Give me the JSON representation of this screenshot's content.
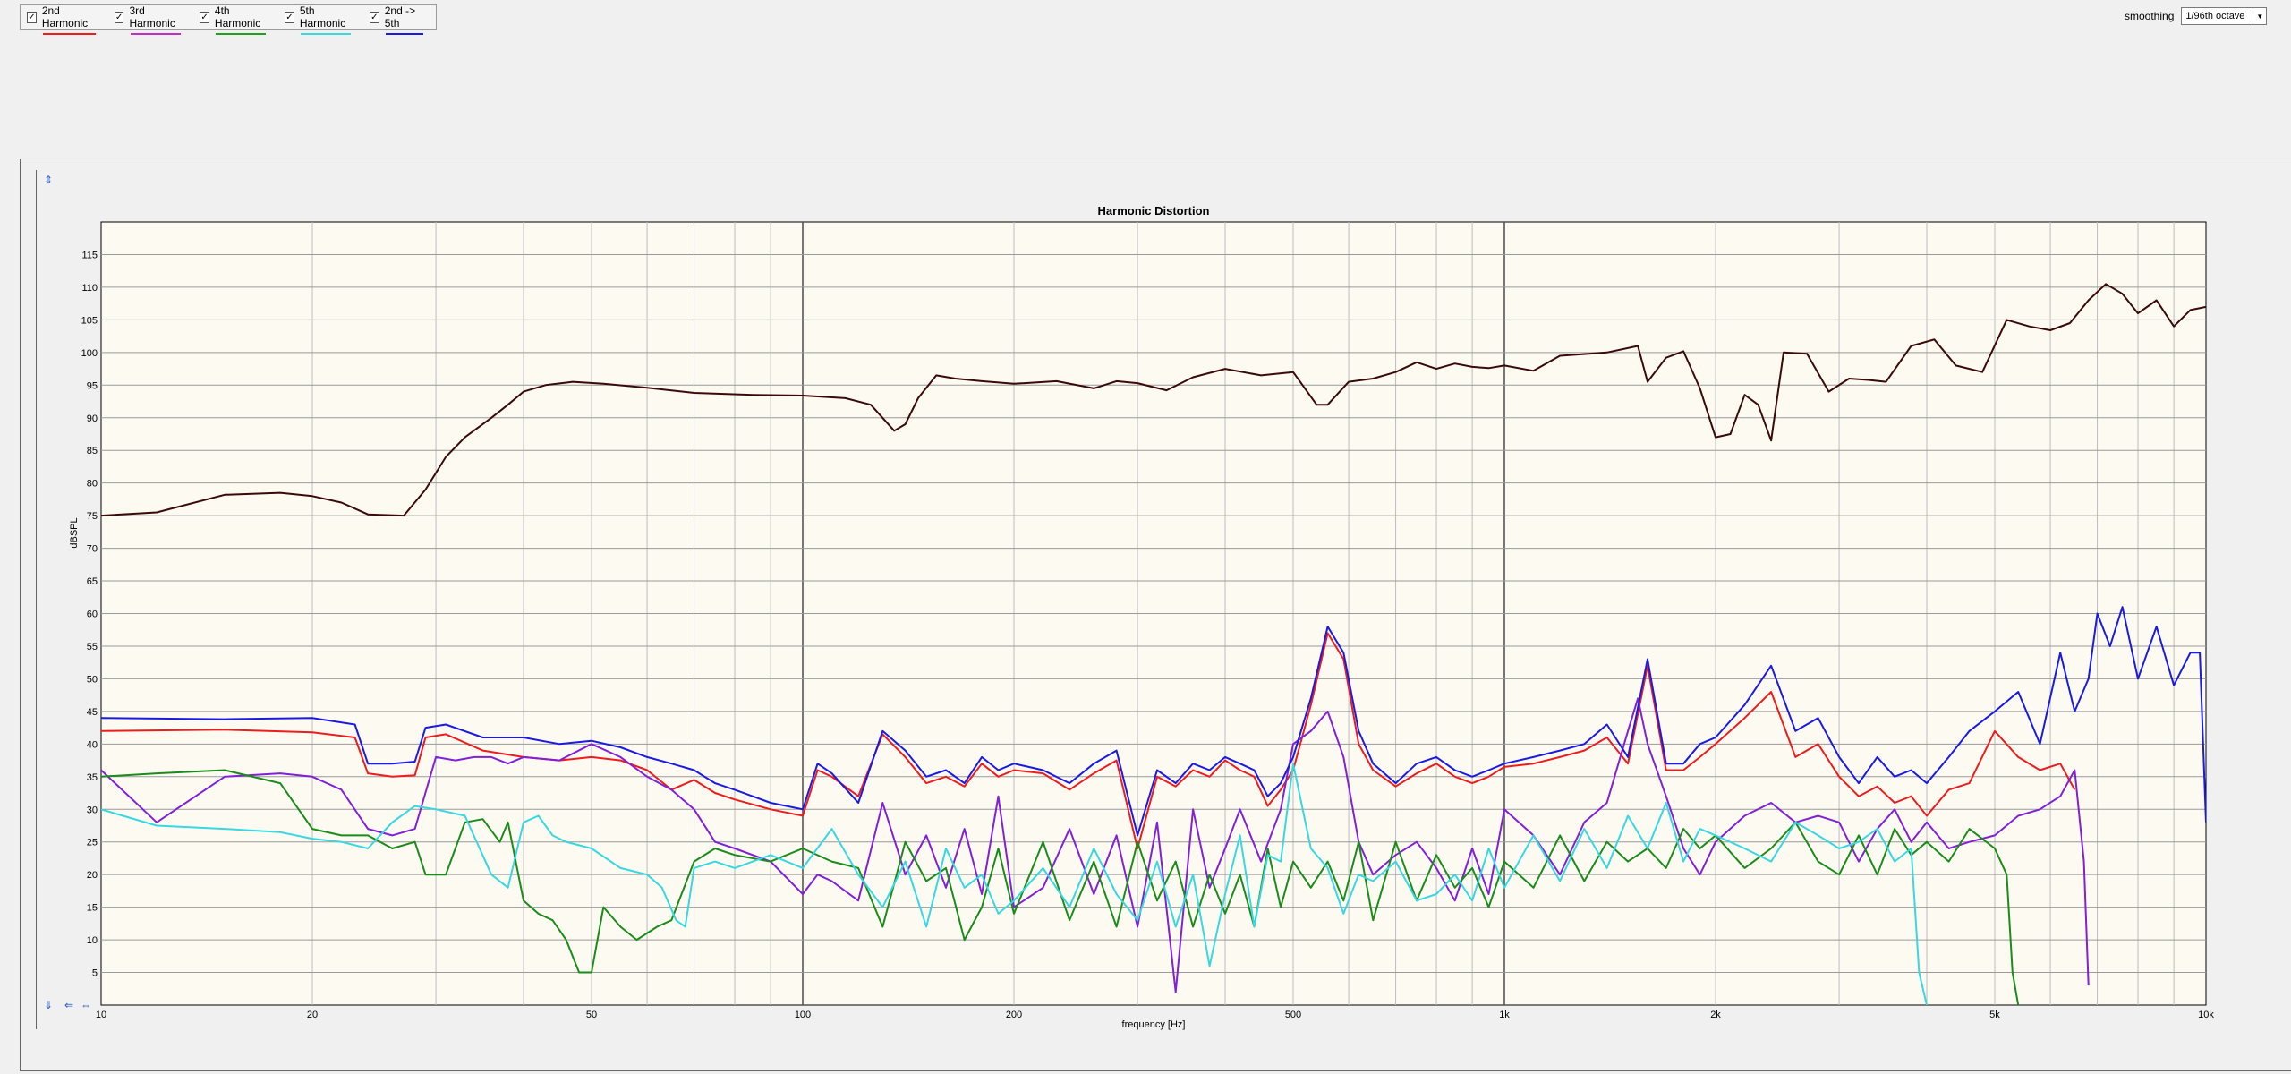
{
  "legend": [
    {
      "label": "2nd Harmonic",
      "color": "#ee1c1c",
      "checked": true
    },
    {
      "label": "3rd Harmonic",
      "color": "#c02ec8",
      "checked": true
    },
    {
      "label": "4th Harmonic",
      "color": "#1ea21e",
      "checked": true
    },
    {
      "label": "5th Harmonic",
      "color": "#38d8e0",
      "checked": true
    },
    {
      "label": "2nd -> 5th",
      "color": "#1a1ae6",
      "checked": true
    }
  ],
  "smoothing": {
    "label": "smoothing",
    "value": "1/96th octave"
  },
  "chart_data": {
    "type": "line",
    "title": "Harmonic Distortion",
    "xlabel": "frequency [Hz]",
    "ylabel": "dBSPL",
    "xscale": "log",
    "xlim": [
      10,
      10000
    ],
    "ylim": [
      0,
      120
    ],
    "grid": true,
    "xticks": [
      {
        "v": 10,
        "t": "10"
      },
      {
        "v": 20,
        "t": "20"
      },
      {
        "v": 50,
        "t": "50"
      },
      {
        "v": 100,
        "t": "100"
      },
      {
        "v": 200,
        "t": "200"
      },
      {
        "v": 500,
        "t": "500"
      },
      {
        "v": 1000,
        "t": "1k"
      },
      {
        "v": 2000,
        "t": "2k"
      },
      {
        "v": 5000,
        "t": "5k"
      },
      {
        "v": 10000,
        "t": "10k"
      }
    ],
    "yticks": [
      5,
      10,
      15,
      20,
      25,
      30,
      35,
      40,
      45,
      50,
      55,
      60,
      65,
      70,
      75,
      80,
      85,
      90,
      95,
      100,
      105,
      110,
      115
    ],
    "series": [
      {
        "color": "#3a0a0a",
        "x": [
          10,
          12,
          15,
          18,
          20,
          22,
          24,
          27,
          29,
          31,
          33,
          36,
          38,
          40,
          43,
          47,
          52,
          60,
          70,
          85,
          100,
          115,
          125,
          135,
          140,
          146,
          155,
          165,
          180,
          200,
          230,
          260,
          280,
          300,
          330,
          360,
          400,
          450,
          500,
          540,
          560,
          600,
          650,
          700,
          750,
          800,
          850,
          900,
          950,
          1000,
          1100,
          1200,
          1400,
          1550,
          1600,
          1700,
          1800,
          1900,
          2000,
          2100,
          2200,
          2300,
          2400,
          2500,
          2700,
          2900,
          3100,
          3300,
          3500,
          3800,
          4100,
          4400,
          4800,
          5200,
          5600,
          6000,
          6400,
          6800,
          7200,
          7600,
          8000,
          8500,
          9000,
          9500,
          10000
        ],
        "y": [
          75,
          75.5,
          78.2,
          78.5,
          78,
          77,
          75.2,
          75,
          79,
          84,
          87,
          90,
          92,
          94,
          95,
          95.5,
          95.2,
          94.6,
          93.8,
          93.5,
          93.4,
          93,
          92,
          88,
          89,
          93,
          96.5,
          96,
          95.6,
          95.2,
          95.6,
          94.5,
          95.6,
          95.3,
          94.2,
          96.2,
          97.5,
          96.5,
          97,
          92,
          92,
          95.5,
          96,
          97,
          98.5,
          97.5,
          98.3,
          97.8,
          97.6,
          98,
          97.2,
          99.5,
          100,
          101,
          95.5,
          99.2,
          100.2,
          94.5,
          87,
          87.5,
          93.5,
          92,
          86.5,
          100,
          99.8,
          94,
          96,
          95.8,
          95.5,
          101,
          102,
          98,
          97,
          105,
          104,
          103.4,
          104.5,
          108,
          110.5,
          109,
          106,
          108,
          104,
          106.5,
          107
        ]
      },
      {
        "color": "#ee1c1c",
        "x": [
          10,
          15,
          20,
          23,
          24,
          26,
          28,
          29,
          31,
          35,
          40,
          45,
          50,
          55,
          60,
          65,
          70,
          75,
          80,
          90,
          100,
          105,
          110,
          120,
          130,
          140,
          150,
          160,
          170,
          180,
          190,
          200,
          220,
          240,
          260,
          280,
          300,
          320,
          340,
          360,
          380,
          400,
          420,
          440,
          460,
          480,
          500,
          530,
          560,
          590,
          620,
          650,
          700,
          750,
          800,
          850,
          900,
          950,
          1000,
          1100,
          1200,
          1300,
          1400,
          1500,
          1600,
          1700,
          1800,
          1900,
          2000,
          2200,
          2400,
          2600,
          2800,
          3000,
          3200,
          3400,
          3600,
          3800,
          4000,
          4300,
          4600,
          5000,
          5400,
          5800,
          6200,
          6500
        ],
        "y": [
          42,
          42.2,
          41.8,
          41,
          35.5,
          35,
          35.2,
          41,
          41.5,
          39,
          38,
          37.5,
          38,
          37.5,
          36,
          33,
          34.5,
          32.5,
          31.5,
          30,
          29,
          36,
          35,
          32,
          41.5,
          38,
          34,
          35,
          33.5,
          37,
          35,
          36,
          35.5,
          33,
          35.5,
          37.5,
          24,
          35,
          33.5,
          36,
          35,
          37.5,
          36,
          35,
          30.5,
          33,
          36,
          46,
          57,
          53,
          40,
          36,
          33.5,
          35.5,
          37,
          35,
          34,
          35,
          36.5,
          37,
          38,
          39,
          41,
          37,
          52,
          36,
          36,
          38,
          40,
          44,
          48,
          38,
          40,
          35,
          32,
          33.5,
          31,
          32,
          29,
          33,
          34,
          42,
          38,
          36,
          37,
          33
        ]
      },
      {
        "color": "#8220d8",
        "x": [
          10,
          12,
          15,
          18,
          20,
          22,
          24,
          26,
          28,
          30,
          32,
          34,
          36,
          38,
          40,
          45,
          50,
          55,
          60,
          65,
          70,
          75,
          80,
          90,
          100,
          105,
          110,
          120,
          130,
          140,
          150,
          160,
          170,
          180,
          190,
          200,
          220,
          240,
          260,
          280,
          300,
          320,
          340,
          360,
          380,
          400,
          420,
          450,
          480,
          500,
          530,
          560,
          590,
          620,
          650,
          700,
          750,
          800,
          850,
          900,
          950,
          1000,
          1100,
          1200,
          1300,
          1400,
          1500,
          1550,
          1600,
          1700,
          1800,
          1900,
          2000,
          2200,
          2400,
          2600,
          2800,
          3000,
          3200,
          3400,
          3600,
          3800,
          4000,
          4300,
          4600,
          5000,
          5400,
          5800,
          6200,
          6500,
          6700,
          6800
        ],
        "y": [
          36,
          28,
          35,
          35.5,
          35,
          33,
          27,
          26,
          27,
          38,
          37.5,
          38,
          38,
          37,
          38,
          37.5,
          40,
          38,
          35,
          33,
          30,
          25,
          24,
          22,
          17,
          20,
          19,
          16,
          31,
          20,
          26,
          18,
          27,
          17,
          32,
          15,
          18,
          27,
          17,
          26,
          12,
          28,
          2,
          30,
          18,
          24,
          30,
          22,
          30,
          40,
          42,
          45,
          38,
          25,
          20,
          23,
          25,
          21,
          16,
          24,
          17,
          30,
          26,
          20,
          28,
          31,
          42,
          47,
          40,
          32,
          24,
          20,
          25,
          29,
          31,
          28,
          29,
          28,
          22,
          27,
          30,
          25,
          28,
          24,
          25,
          26,
          29,
          30,
          32,
          36,
          22,
          3
        ]
      },
      {
        "color": "#1a8c1a",
        "x": [
          10,
          12,
          15,
          18,
          20,
          22,
          24,
          26,
          28,
          29,
          31,
          33,
          35,
          37,
          38,
          40,
          42,
          44,
          46,
          48,
          50,
          52,
          55,
          58,
          62,
          65,
          70,
          75,
          80,
          90,
          100,
          110,
          120,
          130,
          140,
          150,
          160,
          170,
          180,
          190,
          200,
          220,
          240,
          260,
          280,
          300,
          320,
          340,
          360,
          380,
          400,
          420,
          440,
          460,
          480,
          500,
          530,
          560,
          590,
          620,
          650,
          700,
          750,
          800,
          850,
          900,
          950,
          1000,
          1100,
          1200,
          1300,
          1400,
          1500,
          1600,
          1700,
          1800,
          1900,
          2000,
          2200,
          2400,
          2600,
          2800,
          3000,
          3200,
          3400,
          3600,
          3800,
          4000,
          4300,
          4600,
          5000,
          5200,
          5300,
          5400
        ],
        "y": [
          35,
          35.5,
          36,
          34,
          27,
          26,
          26,
          24,
          25,
          20,
          20,
          28,
          28.5,
          25,
          28,
          16,
          14,
          13,
          10,
          5,
          5,
          15,
          12,
          10,
          12,
          13,
          22,
          24,
          23,
          22,
          24,
          22,
          21,
          12,
          25,
          19,
          21,
          10,
          15,
          24,
          14,
          25,
          13,
          22,
          12,
          25,
          16,
          22,
          12,
          20,
          14,
          20,
          12,
          24,
          15,
          22,
          18,
          22,
          16,
          25,
          13,
          25,
          16,
          23,
          18,
          21,
          15,
          22,
          18,
          26,
          19,
          25,
          22,
          24,
          21,
          27,
          24,
          26,
          21,
          24,
          28,
          22,
          20,
          26,
          20,
          27,
          23,
          25,
          22,
          27,
          24,
          20,
          5,
          0
        ]
      },
      {
        "color": "#38d8e0",
        "x": [
          10,
          12,
          15,
          18,
          20,
          22,
          24,
          26,
          28,
          30,
          33,
          36,
          38,
          40,
          42,
          44,
          46,
          50,
          55,
          60,
          63,
          66,
          68,
          70,
          75,
          80,
          90,
          100,
          110,
          120,
          130,
          140,
          150,
          160,
          170,
          180,
          190,
          200,
          220,
          240,
          260,
          280,
          300,
          320,
          340,
          360,
          380,
          400,
          420,
          440,
          460,
          480,
          500,
          530,
          560,
          590,
          620,
          650,
          700,
          750,
          800,
          850,
          900,
          950,
          1000,
          1100,
          1200,
          1300,
          1400,
          1500,
          1600,
          1700,
          1800,
          1900,
          2000,
          2200,
          2400,
          2600,
          2800,
          3000,
          3200,
          3400,
          3600,
          3800,
          3900,
          4000
        ],
        "y": [
          30,
          27.5,
          27,
          26.5,
          25.5,
          25,
          24,
          28,
          30.5,
          30,
          29,
          20,
          18,
          28,
          29,
          26,
          25,
          24,
          21,
          20,
          18,
          13,
          12,
          21,
          22,
          21,
          23,
          21,
          27,
          20,
          15,
          22,
          12,
          24,
          18,
          20,
          14,
          16,
          21,
          15,
          24,
          17,
          13,
          22,
          12,
          20,
          6,
          17,
          26,
          12,
          23,
          22,
          37,
          24,
          21,
          14,
          20,
          19,
          22,
          16,
          17,
          20,
          16,
          24,
          18,
          26,
          19,
          27,
          21,
          29,
          24,
          31,
          22,
          27,
          26,
          24,
          22,
          28,
          26,
          24,
          25,
          27,
          22,
          24,
          5,
          0
        ]
      },
      {
        "color": "#1a1ae6",
        "x": [
          10,
          15,
          20,
          23,
          24,
          26,
          28,
          29,
          31,
          35,
          40,
          45,
          50,
          55,
          60,
          65,
          70,
          75,
          80,
          90,
          100,
          105,
          110,
          120,
          130,
          140,
          150,
          160,
          170,
          180,
          190,
          200,
          220,
          240,
          260,
          280,
          300,
          320,
          340,
          360,
          380,
          400,
          420,
          440,
          460,
          480,
          500,
          530,
          560,
          590,
          620,
          650,
          700,
          750,
          800,
          850,
          900,
          950,
          1000,
          1100,
          1200,
          1300,
          1400,
          1500,
          1600,
          1700,
          1800,
          1900,
          2000,
          2200,
          2400,
          2600,
          2800,
          3000,
          3200,
          3400,
          3600,
          3800,
          4000,
          4300,
          4600,
          5000,
          5400,
          5800,
          6200,
          6500,
          6800,
          7000,
          7300,
          7600,
          8000,
          8500,
          9000,
          9500,
          9800,
          10000
        ],
        "y": [
          44,
          43.8,
          44,
          43,
          37,
          37,
          37.3,
          42.5,
          43,
          41,
          41,
          40,
          40.5,
          39.5,
          38,
          37,
          36,
          34,
          33,
          31,
          30,
          37,
          35.5,
          31,
          42,
          39,
          35,
          36,
          34,
          38,
          36,
          37,
          36,
          34,
          37,
          39,
          26,
          36,
          34,
          37,
          36,
          38,
          37,
          36,
          32,
          34,
          38,
          47,
          58,
          54,
          42,
          37,
          34,
          37,
          38,
          36,
          35,
          36,
          37,
          38,
          39,
          40,
          43,
          38,
          53,
          37,
          37,
          40,
          41,
          46,
          52,
          42,
          44,
          38,
          34,
          38,
          35,
          36,
          34,
          38,
          42,
          45,
          48,
          40,
          54,
          45,
          50,
          60,
          55,
          61,
          50,
          58,
          49,
          54,
          54,
          28
        ]
      }
    ]
  }
}
